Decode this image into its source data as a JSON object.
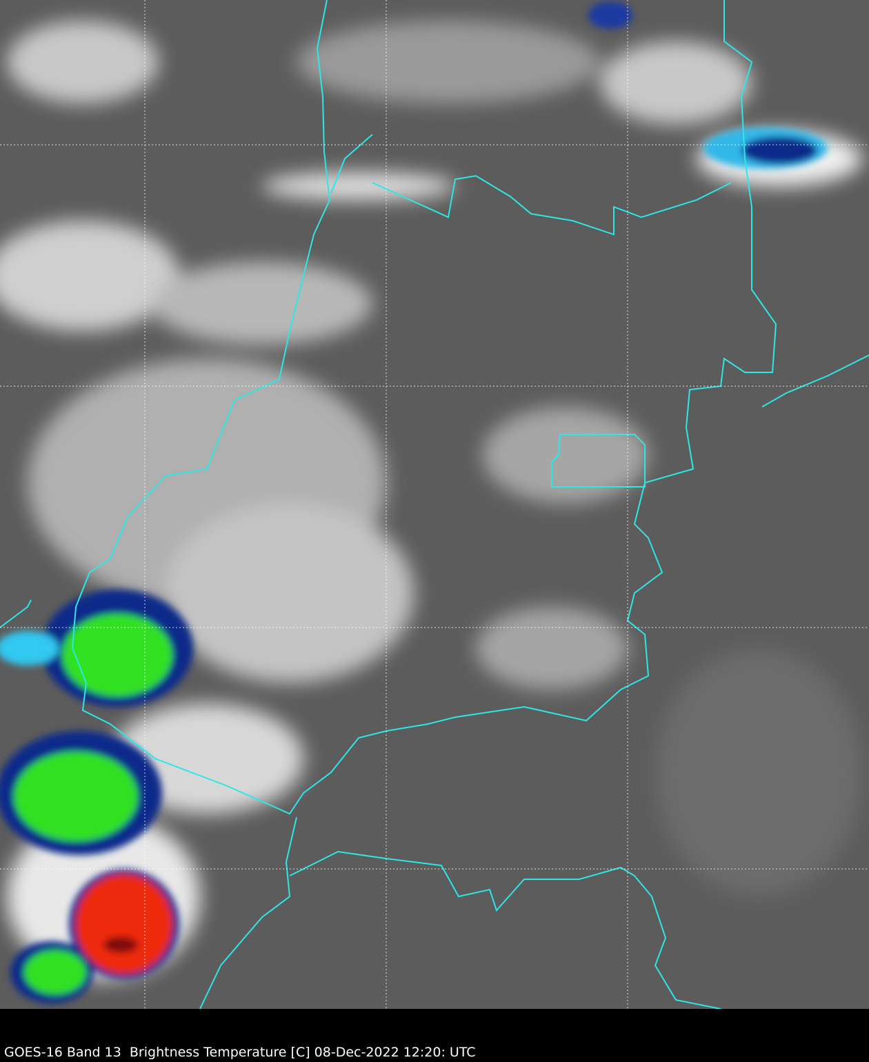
{
  "caption": "GOES-16 Band 13  Brightness Temperature [C] 08-Dec-2022 12:20: UTC",
  "colors": {
    "background_gray": "#5a5a5a",
    "border": "#2ee6e6",
    "gridline": "#ffffff",
    "cold_blue": "#0a2a8a",
    "cold_cyan": "#30c8f0",
    "cold_green": "#30e020",
    "coldest_red": "#ee2a10"
  },
  "map": {
    "product": "GOES-16 Band 13 infrared imagery",
    "gridlines": true
  }
}
